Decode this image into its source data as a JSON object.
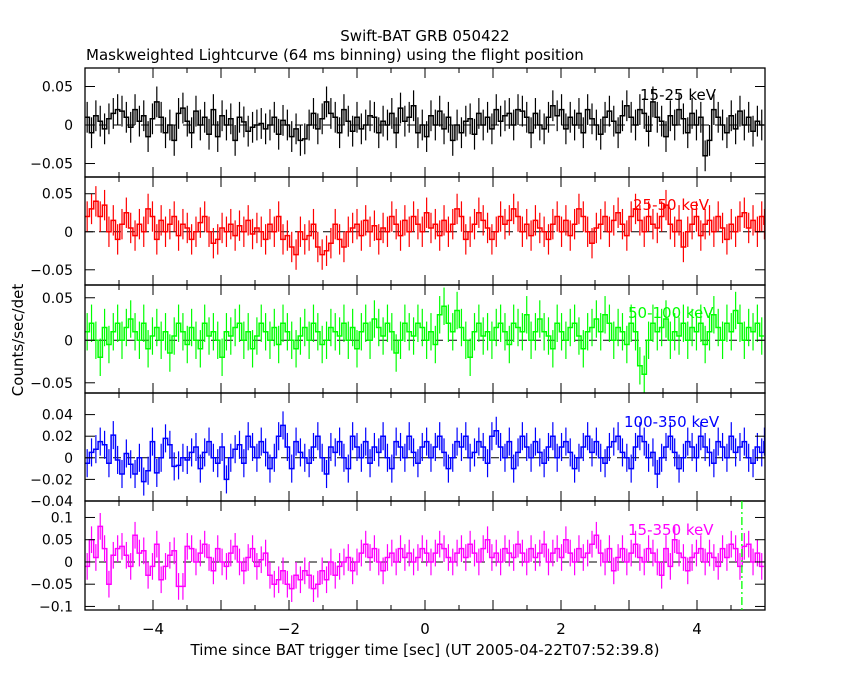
{
  "chart_data": {
    "type": "line",
    "title": "Swift-BAT GRB 050422",
    "subtitle": "Maskweighted Lightcurve (64 ms binning) using the flight position",
    "xlabel": "Time since BAT trigger time [sec] (UT 2005-04-22T07:52:39.8)",
    "ylabel": "Counts/sec/det",
    "xlim": [
      -5,
      5
    ],
    "x_ticks": [
      -4,
      -2,
      0,
      2,
      4
    ],
    "x_tick_labels": [
      "−4",
      "−2",
      "0",
      "2",
      "4"
    ],
    "bin_width_sec": 0.064,
    "marker_line": {
      "x": 4.66,
      "color": "#00ff00",
      "style": "dash-dot"
    },
    "series": [
      {
        "name": "15-25 keV",
        "color": "#000000",
        "error": 0.02,
        "ylim": [
          -0.0675,
          0.074
        ],
        "yticks": [
          0.05,
          0,
          -0.05
        ],
        "ytick_labels": [
          "0.05",
          "0",
          "−0.05"
        ],
        "values": [
          0.01,
          -0.01,
          0.012,
          0.005,
          -0.005,
          0.008,
          0.015,
          0.02,
          0.018,
          0.01,
          -0.003,
          0.02,
          0.005,
          0.012,
          -0.015,
          0.008,
          0.03,
          0.01,
          -0.01,
          0.0,
          -0.02,
          0.015,
          0.022,
          0.005,
          -0.01,
          0.018,
          0.0,
          0.01,
          -0.012,
          0.02,
          -0.015,
          0.012,
          0.0,
          0.008,
          -0.02,
          0.01,
          0.004,
          -0.008,
          -0.003,
          0.0,
          0.002,
          -0.005,
          0.0,
          0.01,
          -0.012,
          0.006,
          0.0,
          -0.015,
          -0.005,
          -0.02,
          -0.018,
          0.0,
          0.015,
          -0.005,
          0.008,
          0.03,
          0.015,
          0.01,
          -0.01,
          0.02,
          0.005,
          -0.008,
          0.01,
          -0.005,
          0.0,
          0.012,
          0.01,
          -0.01,
          0.005,
          0.0,
          0.015,
          -0.01,
          0.022,
          0.005,
          0.01,
          0.025,
          -0.01,
          0.0,
          -0.015,
          0.012,
          0.0,
          0.018,
          -0.005,
          0.01,
          -0.02,
          0.0,
          -0.01,
          0.005,
          0.008,
          -0.012,
          0.015,
          0.0,
          0.01,
          -0.005,
          0.02,
          0.005,
          0.012,
          0.015,
          0.0,
          0.02,
          0.018,
          0.01,
          -0.01,
          0.015,
          0.0,
          -0.005,
          0.01,
          0.025,
          0.012,
          0.02,
          -0.005,
          0.01,
          0.0,
          0.015,
          -0.01,
          0.02,
          0.008,
          0.0,
          -0.012,
          0.01,
          0.018,
          0.005,
          -0.01,
          0.012,
          0.025,
          0.01,
          0.0,
          0.02,
          0.015,
          -0.008,
          0.03,
          0.01,
          0.005,
          -0.015,
          0.012,
          0.0,
          0.02,
          0.008,
          -0.01,
          0.015,
          0.0,
          0.01,
          -0.04,
          -0.02,
          0.02,
          0.01,
          0.0,
          -0.01,
          0.012,
          -0.005,
          0.018,
          0.0,
          0.01,
          -0.008,
          0.005,
          0.0
        ]
      },
      {
        "name": "25-50 keV",
        "color": "#ff0000",
        "error": 0.02,
        "ylim": [
          -0.07,
          0.072
        ],
        "yticks": [
          0.05,
          0,
          -0.05
        ],
        "ytick_labels": [
          "0.05",
          "0",
          "−0.05"
        ],
        "values": [
          0.02,
          0.03,
          0.04,
          0.02,
          0.035,
          0.0,
          0.015,
          -0.01,
          0.01,
          0.025,
          0.005,
          -0.005,
          0.01,
          0.0,
          0.03,
          0.02,
          -0.01,
          0.015,
          0.0,
          0.01,
          0.02,
          -0.005,
          0.01,
          0.005,
          -0.01,
          0.0,
          0.012,
          0.02,
          0.0,
          -0.015,
          -0.01,
          0.005,
          0.0,
          0.01,
          -0.005,
          0.008,
          0.0,
          0.015,
          -0.003,
          0.005,
          0.0,
          -0.01,
          0.01,
          0.0,
          0.02,
          -0.01,
          -0.005,
          -0.02,
          -0.03,
          0.0,
          -0.01,
          -0.005,
          0.01,
          -0.02,
          -0.03,
          -0.025,
          -0.015,
          0.01,
          -0.01,
          -0.02,
          0.0,
          0.005,
          0.01,
          -0.005,
          0.015,
          0.0,
          0.008,
          -0.01,
          0.005,
          0.0,
          0.02,
          0.01,
          -0.005,
          0.015,
          0.0,
          0.02,
          0.01,
          0.0,
          0.025,
          0.005,
          0.01,
          -0.005,
          0.015,
          0.0,
          0.01,
          0.03,
          0.02,
          -0.01,
          0.0,
          0.01,
          0.025,
          0.015,
          0.005,
          -0.01,
          0.0,
          0.02,
          0.01,
          0.015,
          0.03,
          0.02,
          0.0,
          0.01,
          -0.005,
          0.015,
          0.005,
          0.0,
          -0.01,
          0.01,
          0.02,
          0.0,
          0.015,
          -0.005,
          0.01,
          0.03,
          0.02,
          0.0,
          -0.015,
          0.005,
          0.01,
          0.02,
          0.0,
          0.015,
          0.025,
          0.01,
          -0.005,
          0.02,
          0.03,
          0.015,
          0.0,
          0.02,
          0.01,
          0.005,
          0.02,
          0.035,
          0.01,
          0.0,
          0.015,
          -0.02,
          0.0,
          0.01,
          0.02,
          -0.005,
          0.01,
          0.015,
          0.0,
          0.02,
          0.005,
          -0.01,
          0.01,
          0.0,
          0.02,
          0.025,
          0.005,
          0.015,
          0.0,
          0.02,
          0.01,
          -0.005,
          0.015
        ]
      },
      {
        "name": "50-100 keV",
        "color": "#00ff00",
        "error": 0.022,
        "ylim": [
          -0.062,
          0.065
        ],
        "yticks": [
          0.05,
          0,
          -0.05
        ],
        "ytick_labels": [
          "0.05",
          "0",
          "−0.05"
        ],
        "values": [
          0.01,
          0.02,
          0.0,
          -0.02,
          0.015,
          -0.005,
          0.01,
          0.02,
          0.0,
          0.015,
          0.025,
          0.01,
          0.0,
          0.02,
          -0.01,
          0.005,
          0.015,
          0.0,
          0.01,
          -0.015,
          0.005,
          0.02,
          0.01,
          -0.005,
          0.015,
          0.0,
          -0.01,
          0.02,
          0.005,
          0.01,
          0.0,
          -0.02,
          0.01,
          0.005,
          0.015,
          0.02,
          0.0,
          0.01,
          -0.01,
          0.005,
          0.02,
          0.01,
          0.0,
          0.015,
          -0.005,
          0.02,
          0.01,
          0.0,
          -0.01,
          0.005,
          0.015,
          0.0,
          0.02,
          0.01,
          -0.005,
          0.0,
          0.015,
          0.01,
          0.005,
          0.02,
          0.0,
          0.015,
          -0.01,
          0.01,
          0.02,
          0.0,
          0.025,
          0.015,
          0.005,
          0.02,
          0.01,
          -0.015,
          0.0,
          0.02,
          0.01,
          0.005,
          0.02,
          0.015,
          0.0,
          0.01,
          -0.005,
          0.03,
          0.04,
          0.02,
          0.01,
          0.035,
          0.015,
          0.0,
          -0.02,
          0.01,
          0.02,
          0.005,
          0.01,
          0.0,
          0.015,
          0.02,
          0.01,
          -0.005,
          0.02,
          0.015,
          0.01,
          0.03,
          0.0,
          0.01,
          0.025,
          0.01,
          0.005,
          -0.01,
          0.02,
          0.01,
          0.0,
          0.015,
          0.02,
          0.005,
          -0.01,
          0.01,
          0.015,
          0.025,
          0.01,
          0.03,
          0.02,
          0.0,
          0.015,
          0.01,
          -0.005,
          0.02,
          0.01,
          -0.03,
          -0.04,
          0.0,
          0.02,
          0.01,
          0.015,
          0.025,
          0.0,
          0.01,
          0.005,
          0.02,
          0.0,
          0.015,
          0.01,
          0.02,
          -0.005,
          0.01,
          0.03,
          0.015,
          0.0,
          0.02,
          0.01,
          0.035,
          0.02,
          0.0,
          0.015,
          0.01,
          0.02,
          0.005
        ]
      },
      {
        "name": "100-350 keV",
        "color": "#0000ff",
        "error": 0.013,
        "ylim": [
          -0.04,
          0.06
        ],
        "yticks": [
          0.04,
          0.02,
          0,
          -0.02,
          -0.04
        ],
        "ytick_labels": [
          "0.04",
          "0.02",
          "0",
          "−0.02",
          "−0.04"
        ],
        "values": [
          -0.005,
          0.005,
          0.008,
          0.015,
          0.012,
          -0.005,
          0.021,
          -0.002,
          -0.015,
          0.004,
          -0.006,
          -0.015,
          0.0,
          -0.022,
          -0.012,
          0.015,
          -0.014,
          0.0,
          0.018,
          0.012,
          -0.008,
          -0.007,
          0.0,
          -0.002,
          0.005,
          0.01,
          -0.01,
          0.005,
          0.015,
          0.0,
          -0.005,
          0.01,
          -0.02,
          0.0,
          0.008,
          0.012,
          -0.005,
          0.02,
          0.01,
          0.0,
          0.015,
          0.005,
          -0.01,
          0.0,
          0.02,
          0.03,
          0.01,
          -0.01,
          0.015,
          0.005,
          0.0,
          -0.005,
          0.01,
          0.02,
          0.0,
          -0.015,
          0.01,
          0.005,
          0.015,
          0.0,
          -0.01,
          0.02,
          0.01,
          0.0,
          0.015,
          -0.005,
          0.01,
          0.005,
          0.02,
          0.0,
          -0.01,
          0.015,
          0.01,
          0.0,
          0.02,
          0.005,
          -0.005,
          0.01,
          0.015,
          0.0,
          0.01,
          0.02,
          0.005,
          -0.01,
          0.0,
          0.015,
          0.01,
          0.02,
          0.0,
          0.005,
          0.015,
          0.01,
          -0.005,
          0.02,
          0.025,
          0.01,
          0.0,
          0.015,
          -0.01,
          0.005,
          0.02,
          0.01,
          0.0,
          0.015,
          0.005,
          -0.005,
          0.01,
          0.02,
          0.0,
          0.01,
          0.015,
          0.005,
          -0.01,
          0.0,
          0.01,
          0.02,
          0.005,
          0.015,
          0.0,
          -0.005,
          0.01,
          0.015,
          0.02,
          0.005,
          0.0,
          -0.01,
          0.01,
          0.02,
          0.015,
          0.0,
          0.005,
          -0.015,
          0.0,
          0.01,
          0.02,
          0.005,
          -0.01,
          0.0,
          0.015,
          0.01,
          0.0,
          0.02,
          0.01,
          0.005,
          -0.005,
          0.015,
          0.01,
          0.0,
          0.02,
          0.005,
          0.01,
          0.015,
          0.0,
          -0.005,
          0.01,
          0.005,
          0.015,
          0.0
        ]
      },
      {
        "name": "15-350 keV",
        "color": "#ff00ff",
        "error": 0.03,
        "ylim": [
          -0.108,
          0.137
        ],
        "yticks": [
          0.1,
          0.05,
          0,
          -0.05,
          -0.1
        ],
        "ytick_labels": [
          "0.1",
          "0.05",
          "0",
          "−0.05",
          "−0.1"
        ],
        "values": [
          -0.01,
          0.05,
          0.01,
          0.08,
          0.03,
          -0.05,
          0.015,
          0.03,
          0.035,
          0.015,
          -0.01,
          0.06,
          0.02,
          0.025,
          -0.03,
          -0.01,
          0.04,
          -0.04,
          -0.01,
          0.015,
          0.025,
          -0.055,
          -0.055,
          0.035,
          0.03,
          0.0,
          0.02,
          0.04,
          0.01,
          -0.02,
          0.03,
          0.0,
          -0.01,
          0.02,
          0.035,
          0.0,
          -0.02,
          0.01,
          0.03,
          -0.01,
          0.005,
          0.02,
          -0.03,
          -0.05,
          -0.04,
          -0.02,
          -0.05,
          -0.06,
          -0.03,
          -0.04,
          -0.02,
          -0.03,
          -0.06,
          -0.05,
          -0.02,
          -0.04,
          0.0,
          -0.03,
          -0.01,
          0.0,
          0.01,
          -0.02,
          0.0,
          0.02,
          0.04,
          0.01,
          0.03,
          0.0,
          -0.02,
          0.01,
          0.02,
          0.0,
          0.03,
          0.01,
          0.02,
          0.0,
          0.01,
          0.03,
          0.02,
          0.0,
          0.02,
          0.04,
          0.03,
          0.01,
          0.0,
          0.02,
          0.03,
          0.01,
          0.04,
          0.02,
          0.0,
          0.03,
          0.05,
          0.01,
          0.02,
          0.0,
          0.03,
          0.02,
          0.01,
          0.04,
          0.02,
          0.0,
          0.03,
          0.01,
          0.02,
          0.04,
          0.0,
          0.02,
          0.03,
          0.01,
          0.05,
          0.02,
          0.0,
          0.03,
          0.01,
          0.02,
          0.04,
          0.06,
          0.02,
          0.0,
          0.03,
          -0.02,
          0.01,
          0.03,
          0.0,
          0.02,
          0.04,
          0.01,
          0.0,
          0.03,
          0.02,
          0.0,
          -0.03,
          0.03,
          -0.01,
          0.05,
          0.02,
          0.01,
          -0.02,
          0.01,
          0.02,
          0.03,
          0.0,
          0.02,
          0.01,
          -0.01,
          0.03,
          0.01,
          0.04,
          0.03,
          -0.01,
          0.035,
          0.04,
          0.0,
          0.02,
          -0.01
        ]
      }
    ]
  }
}
